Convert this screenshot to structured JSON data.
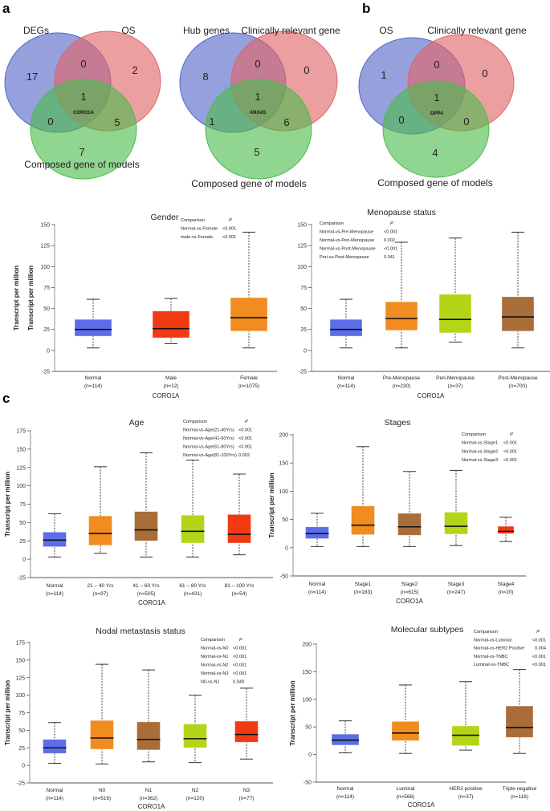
{
  "panel_labels": {
    "a": "a",
    "b": "b",
    "c": "c"
  },
  "venn": [
    {
      "sets": [
        "DEGs",
        "OS",
        "Composed gene of models"
      ],
      "regions": {
        "a_only": "17",
        "ab": "0",
        "b_only": "2",
        "abc": "1",
        "ac": "0",
        "bc": "5",
        "c_only": "7"
      },
      "center_gene": "CORO1A"
    },
    {
      "sets": [
        "Hub genes",
        "Clinically relevant gene",
        "Composed gene of models"
      ],
      "regions": {
        "a_only": "8",
        "ab": "0",
        "b_only": "0",
        "abc": "1",
        "ac": "1",
        "bc": "6",
        "c_only": "5"
      },
      "center_gene": "ANXA5"
    },
    {
      "sets": [
        "OS",
        "Clinically relevant gene",
        "Composed gene of models"
      ],
      "regions": {
        "a_only": "1",
        "ab": "0",
        "b_only": "0",
        "abc": "1",
        "ac": "0",
        "bc": "0",
        "c_only": "4"
      },
      "center_gene": "DPP4"
    }
  ],
  "venn_colors": [
    "#5566c8",
    "#e06466",
    "#4cbc4c"
  ],
  "colors": {
    "blue": "#5b6ee8",
    "orange": "#f08c20",
    "red": "#f03a12",
    "green": "#b2d617",
    "brown": "#a86d38"
  },
  "chart_data": [
    {
      "type": "box",
      "title": "Gender",
      "xlabel": "CORO1A",
      "ylabel": "Transcript per million",
      "ylim": [
        -25,
        150
      ],
      "yticks": [
        -25,
        0,
        25,
        50,
        75,
        100,
        125,
        150
      ],
      "categories": [
        "Normal",
        "Male",
        "Female"
      ],
      "n": [
        "(n=114)",
        "(n=12)",
        "(n=1075)"
      ],
      "colors": [
        "blue",
        "red",
        "orange"
      ],
      "boxes": [
        [
          3,
          17,
          25,
          37,
          61
        ],
        [
          8,
          15,
          26,
          47,
          62
        ],
        [
          3,
          23,
          39,
          63,
          141
        ]
      ],
      "comparison": {
        "header": [
          "Comparison",
          "P"
        ],
        "rows": [
          [
            "Normal-vs-Female",
            "<0.001"
          ],
          [
            "male-vs-Female",
            "<0.001"
          ]
        ]
      }
    },
    {
      "type": "box",
      "title": "Menopause status",
      "xlabel": "CORO1A",
      "ylabel": "Transcript per million",
      "ylim": [
        -25,
        150
      ],
      "yticks": [
        -25,
        0,
        25,
        50,
        75,
        100,
        125,
        150
      ],
      "categories": [
        "Normal",
        "Pre-Menopause",
        "Peri-Menopause",
        "Post-Menopause"
      ],
      "n": [
        "(n=114)",
        "(n=230)",
        "(n=37)",
        "(n=700)"
      ],
      "colors": [
        "blue",
        "orange",
        "green",
        "brown"
      ],
      "boxes": [
        [
          3,
          17,
          25,
          37,
          61
        ],
        [
          3,
          24,
          38,
          58,
          129
        ],
        [
          10,
          21,
          37,
          67,
          134
        ],
        [
          3,
          23,
          40,
          64,
          141
        ]
      ],
      "comparison": {
        "header": [
          "Comparison",
          "P"
        ],
        "rows": [
          [
            "Normal-vs-Pre-Menopause",
            "<0.001"
          ],
          [
            "Normal-vs-Peri-Menopause",
            "0.002"
          ],
          [
            "Normal-vs-Post-Menopause",
            "<0.001"
          ],
          [
            "Peri-vs-Post-Menopause",
            "0.041"
          ]
        ]
      }
    },
    {
      "type": "box",
      "title": "Age",
      "xlabel": "CORO1A",
      "ylabel": "Transcript per million",
      "ylim": [
        -25,
        175
      ],
      "yticks": [
        -25,
        0,
        25,
        50,
        75,
        100,
        125,
        150,
        175
      ],
      "categories": [
        "Normal",
        "21 – 40 Yrs",
        "41 – 60 Yrs",
        "61 – 80 Yrs",
        "81 – 100 Yrs"
      ],
      "n": [
        "(n=114)",
        "(n=97)",
        "(n=505)",
        "(n=431)",
        "(n=54)"
      ],
      "colors": [
        "blue",
        "orange",
        "brown",
        "green",
        "red"
      ],
      "boxes": [
        [
          3,
          17,
          26,
          37,
          62
        ],
        [
          8,
          19,
          35,
          59,
          126
        ],
        [
          3,
          25,
          40,
          65,
          145
        ],
        [
          3,
          22,
          38,
          60,
          135
        ],
        [
          6,
          22,
          34,
          61,
          116
        ]
      ],
      "comparison": {
        "header": [
          "Comparison",
          "P"
        ],
        "rows": [
          [
            "Normal-vs-Age(21-40Yrs)",
            "<0.001"
          ],
          [
            "Normal-vs-Age(41-60Yrs)",
            "<0.001"
          ],
          [
            "Normal-vs-Age(61-80Yrs)",
            "<0.001"
          ],
          [
            "Normal-vs-Age(81-100Yrs)",
            "0.002"
          ]
        ]
      }
    },
    {
      "type": "box",
      "title": "Stages",
      "xlabel": "CORO1A",
      "ylabel": "Transcript per million",
      "ylim": [
        -50,
        200
      ],
      "yticks": [
        -50,
        0,
        50,
        100,
        150,
        200
      ],
      "categories": [
        "Normal",
        "Stage1",
        "Stage2",
        "Stage3",
        "Stage4"
      ],
      "n": [
        "(n=114)",
        "(n=183)",
        "(n=615)",
        "(n=247)",
        "(n=20)"
      ],
      "colors": [
        "blue",
        "orange",
        "brown",
        "green",
        "red"
      ],
      "boxes": [
        [
          2,
          16,
          25,
          37,
          61
        ],
        [
          2,
          23,
          40,
          74,
          179
        ],
        [
          2,
          22,
          37,
          61,
          135
        ],
        [
          4,
          24,
          38,
          63,
          137
        ],
        [
          11,
          25,
          29,
          38,
          54
        ]
      ],
      "comparison": {
        "header": [
          "Comparison",
          "P"
        ],
        "rows": [
          [
            "Normal-vs-Stage1",
            "<0.001"
          ],
          [
            "Normal-vs-Stage2",
            "<0.001"
          ],
          [
            "Normal-vs-Stage3",
            "<0.001"
          ]
        ]
      }
    },
    {
      "type": "box",
      "title": "Nodal metastasis status",
      "xlabel": "CORO1A",
      "ylabel": "Transcript per million",
      "ylim": [
        -25,
        175
      ],
      "yticks": [
        -25,
        0,
        25,
        50,
        75,
        100,
        125,
        150,
        175
      ],
      "categories": [
        "Normal",
        "N0",
        "N1",
        "N2",
        "N3"
      ],
      "n": [
        "(n=114)",
        "(n=516)",
        "(n=362)",
        "(n=120)",
        "(n=77)"
      ],
      "colors": [
        "blue",
        "orange",
        "brown",
        "green",
        "red"
      ],
      "boxes": [
        [
          3,
          17,
          25,
          37,
          61
        ],
        [
          2,
          23,
          39,
          64,
          144
        ],
        [
          5,
          22,
          37,
          62,
          136
        ],
        [
          4,
          25,
          38,
          59,
          100
        ],
        [
          9,
          33,
          44,
          63,
          110
        ]
      ],
      "comparison": {
        "header": [
          "Comparison",
          "P"
        ],
        "rows": [
          [
            "Normal-vs-N0",
            "<0.001"
          ],
          [
            "Normal-vs-N1",
            "<0.001"
          ],
          [
            "Normal-vs-N2",
            "<0.001"
          ],
          [
            "Normal-vs-N3",
            "<0.001"
          ],
          [
            "N0-vs-N1",
            "0.048"
          ]
        ]
      }
    },
    {
      "type": "box",
      "title": "Molecular subtypes",
      "xlabel": "CORO1A",
      "ylabel": "Transcript per million",
      "ylim": [
        -50,
        200
      ],
      "yticks": [
        -50,
        0,
        50,
        100,
        150,
        200
      ],
      "categories": [
        "Normal",
        "Luminal",
        "HER2 positive",
        "Triple negative"
      ],
      "n": [
        "(n=114)",
        "(n=566)",
        "(n=37)",
        "(n=116)"
      ],
      "colors": [
        "blue",
        "orange",
        "green",
        "brown"
      ],
      "boxes": [
        [
          3,
          17,
          26,
          37,
          61
        ],
        [
          2,
          25,
          39,
          60,
          126
        ],
        [
          8,
          16,
          35,
          52,
          132
        ],
        [
          2,
          31,
          49,
          88,
          154
        ]
      ],
      "comparison": {
        "header": [
          "Comparison",
          "P"
        ],
        "rows": [
          [
            "Normal-vs-Luminal",
            "<0.001"
          ],
          [
            "Normal-vs-HER2 Positive",
            "0.004"
          ],
          [
            "Normal-vs-TNBC",
            "<0.001"
          ],
          [
            "Luminal-vs-TNBC",
            "<0.001"
          ]
        ]
      }
    }
  ]
}
